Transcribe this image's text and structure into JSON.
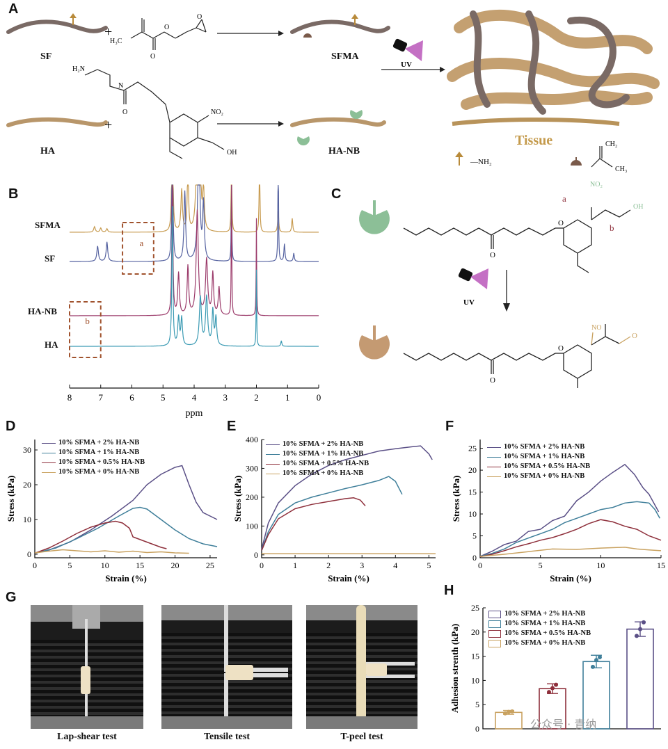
{
  "panels": {
    "A": "A",
    "B": "B",
    "C": "C",
    "D": "D",
    "E": "E",
    "F": "F",
    "G": "G",
    "H": "H"
  },
  "panelA": {
    "sf": "SF",
    "ha": "HA",
    "sfma": "SFMA",
    "hanb": "HA-NB",
    "uv": "UV",
    "tissue": "Tissue",
    "nh2": "—NH₂",
    "plus": "+",
    "h3c": "H₃C",
    "no2": "NO₂",
    "oh": "OH",
    "h2n": "H₂N",
    "ch2": "CH₂",
    "ch3": "CH₃"
  },
  "panelB": {
    "traces": [
      "SFMA",
      "SF",
      "HA-NB",
      "HA"
    ],
    "xlabel": "ppm",
    "xticks": [
      "8",
      "7",
      "6",
      "5",
      "4",
      "3",
      "2",
      "1",
      "0"
    ],
    "box_a": "a",
    "box_b": "b"
  },
  "panelC": {
    "uv": "UV",
    "a": "a",
    "b": "b",
    "no2": "NO₂",
    "oh": "OH",
    "no": "NO"
  },
  "colors": {
    "c2": "#5a4f86",
    "c1": "#3f7f9a",
    "c05": "#8e2f3b",
    "c0": "#c9a260",
    "sfma": "#c79a4e",
    "sf": "#5562a0",
    "hanb": "#9b3a6a",
    "ha": "#3a9ab3",
    "box": "#a0522d",
    "tissue": "#b8935a"
  },
  "legend": [
    "10% SFMA + 2% HA-NB",
    "10% SFMA + 1% HA-NB",
    "10% SFMA + 0.5% HA-NB",
    "10% SFMA + 0% HA-NB"
  ],
  "chart_data": [
    {
      "panel": "D",
      "type": "line",
      "xlabel": "Strain (%)",
      "ylabel": "Stress (kPa)",
      "xlim": [
        0,
        26
      ],
      "ylim": [
        -1,
        33
      ],
      "xticks": [
        0,
        5,
        10,
        15,
        20,
        25
      ],
      "yticks": [
        0,
        10,
        20,
        30
      ],
      "series": [
        {
          "name": "10% SFMA + 2% HA-NB",
          "points": [
            [
              0,
              0.3
            ],
            [
              2,
              1.2
            ],
            [
              5,
              3.5
            ],
            [
              8,
              7
            ],
            [
              11,
              11
            ],
            [
              14,
              15.5
            ],
            [
              16,
              20
            ],
            [
              18,
              23
            ],
            [
              20,
              25
            ],
            [
              21,
              25.5
            ],
            [
              22,
              20
            ],
            [
              23,
              15
            ],
            [
              24,
              12
            ],
            [
              26,
              10
            ]
          ]
        },
        {
          "name": "10% SFMA + 1% HA-NB",
          "points": [
            [
              0,
              0.3
            ],
            [
              3,
              1.8
            ],
            [
              6,
              4.5
            ],
            [
              9,
              7.5
            ],
            [
              12,
              11
            ],
            [
              14,
              13.2
            ],
            [
              15,
              13.5
            ],
            [
              16,
              13
            ],
            [
              18,
              10
            ],
            [
              20,
              7
            ],
            [
              22,
              4.5
            ],
            [
              24,
              3
            ],
            [
              26,
              2.2
            ]
          ]
        },
        {
          "name": "10% SFMA + 0.5% HA-NB",
          "points": [
            [
              0,
              0.3
            ],
            [
              2,
              1.8
            ],
            [
              4,
              3.8
            ],
            [
              6,
              6
            ],
            [
              8,
              7.8
            ],
            [
              10,
              9
            ],
            [
              11.5,
              9.5
            ],
            [
              12.5,
              9
            ],
            [
              13.5,
              7.5
            ],
            [
              14,
              5
            ],
            [
              16,
              3.5
            ],
            [
              18,
              2
            ],
            [
              18.8,
              1.6
            ]
          ]
        },
        {
          "name": "10% SFMA + 0% HA-NB",
          "points": [
            [
              0,
              0.4
            ],
            [
              2,
              0.9
            ],
            [
              4,
              1.3
            ],
            [
              6,
              1.0
            ],
            [
              8,
              0.7
            ],
            [
              10,
              1.0
            ],
            [
              12,
              0.6
            ],
            [
              14,
              0.9
            ],
            [
              16,
              0.5
            ],
            [
              18,
              0.7
            ],
            [
              20,
              0.4
            ],
            [
              22,
              0.3
            ]
          ]
        }
      ]
    },
    {
      "panel": "E",
      "type": "line",
      "xlabel": "Strain (%)",
      "ylabel": "Stress (kPa)",
      "xlim": [
        0,
        5.2
      ],
      "ylim": [
        -10,
        400
      ],
      "xticks": [
        0,
        1,
        2,
        3,
        4,
        5
      ],
      "yticks": [
        0,
        100,
        200,
        300,
        400
      ],
      "series": [
        {
          "name": "10% SFMA + 2% HA-NB",
          "points": [
            [
              0,
              20
            ],
            [
              0.2,
              110
            ],
            [
              0.5,
              180
            ],
            [
              1,
              240
            ],
            [
              1.5,
              280
            ],
            [
              2,
              310
            ],
            [
              2.5,
              330
            ],
            [
              3,
              345
            ],
            [
              3.5,
              360
            ],
            [
              4,
              368
            ],
            [
              4.5,
              375
            ],
            [
              4.75,
              378
            ],
            [
              5,
              350
            ],
            [
              5.1,
              330
            ]
          ]
        },
        {
          "name": "10% SFMA + 1% HA-NB",
          "points": [
            [
              0,
              15
            ],
            [
              0.2,
              80
            ],
            [
              0.5,
              140
            ],
            [
              1,
              180
            ],
            [
              1.5,
              200
            ],
            [
              2,
              215
            ],
            [
              2.5,
              230
            ],
            [
              3,
              243
            ],
            [
              3.5,
              258
            ],
            [
              3.8,
              272
            ],
            [
              4,
              255
            ],
            [
              4.2,
              210
            ]
          ]
        },
        {
          "name": "10% SFMA + 0.5% HA-NB",
          "points": [
            [
              0,
              15
            ],
            [
              0.2,
              70
            ],
            [
              0.5,
              125
            ],
            [
              1,
              160
            ],
            [
              1.5,
              175
            ],
            [
              2,
              185
            ],
            [
              2.5,
              195
            ],
            [
              2.75,
              198
            ],
            [
              2.95,
              190
            ],
            [
              3.1,
              170
            ]
          ]
        },
        {
          "name": "10% SFMA + 0% HA-NB",
          "points": [
            [
              0,
              4
            ],
            [
              1,
              4
            ],
            [
              2,
              4
            ],
            [
              3,
              4
            ],
            [
              4,
              4
            ],
            [
              5.2,
              4
            ]
          ]
        }
      ]
    },
    {
      "panel": "F",
      "type": "line",
      "xlabel": "Strain (%)",
      "ylabel": "Stress (kPa)",
      "xlim": [
        0,
        15
      ],
      "ylim": [
        0,
        27
      ],
      "xticks": [
        0,
        5,
        10,
        15
      ],
      "yticks": [
        0,
        5,
        10,
        15,
        20,
        25
      ],
      "series": [
        {
          "name": "10% SFMA + 2% HA-NB",
          "points": [
            [
              0,
              0.3
            ],
            [
              1,
              1.5
            ],
            [
              2,
              3
            ],
            [
              3,
              3.8
            ],
            [
              4,
              6
            ],
            [
              5,
              6.5
            ],
            [
              6,
              8.5
            ],
            [
              7,
              9.5
            ],
            [
              8,
              13
            ],
            [
              9,
              15
            ],
            [
              10,
              17.5
            ],
            [
              11,
              19.5
            ],
            [
              12,
              21.3
            ],
            [
              12.8,
              19
            ],
            [
              13.5,
              16
            ],
            [
              14,
              14.5
            ],
            [
              14.5,
              12
            ],
            [
              14.8,
              10.5
            ]
          ]
        },
        {
          "name": "10% SFMA + 1% HA-NB",
          "points": [
            [
              0,
              0.3
            ],
            [
              1,
              1
            ],
            [
              2,
              2
            ],
            [
              3,
              3.5
            ],
            [
              4,
              4.5
            ],
            [
              5,
              5.5
            ],
            [
              6,
              6.5
            ],
            [
              7,
              8
            ],
            [
              8,
              9
            ],
            [
              9,
              10
            ],
            [
              10,
              11
            ],
            [
              11,
              11.5
            ],
            [
              12,
              12.5
            ],
            [
              13,
              12.8
            ],
            [
              14,
              12.5
            ],
            [
              14.5,
              11
            ],
            [
              14.9,
              9
            ]
          ]
        },
        {
          "name": "10% SFMA + 0.5% HA-NB",
          "points": [
            [
              0,
              0.2
            ],
            [
              1,
              0.8
            ],
            [
              2,
              1.6
            ],
            [
              3,
              2.5
            ],
            [
              4,
              3.2
            ],
            [
              5,
              4
            ],
            [
              6,
              4.6
            ],
            [
              7,
              5.5
            ],
            [
              8,
              6.5
            ],
            [
              9,
              7.8
            ],
            [
              10,
              8.7
            ],
            [
              11,
              8.2
            ],
            [
              12,
              7.2
            ],
            [
              13,
              6.5
            ],
            [
              14,
              5
            ],
            [
              15,
              4
            ]
          ]
        },
        {
          "name": "10% SFMA + 0% HA-NB",
          "points": [
            [
              0,
              0.3
            ],
            [
              2,
              0.8
            ],
            [
              4,
              1.4
            ],
            [
              6,
              2.0
            ],
            [
              8,
              1.9
            ],
            [
              10,
              2.2
            ],
            [
              12,
              2.4
            ],
            [
              13,
              2.0
            ],
            [
              14,
              1.8
            ],
            [
              15,
              1.6
            ]
          ]
        }
      ]
    },
    {
      "panel": "H",
      "type": "bar",
      "ylabel": "Adhesion strenth  (kPa)",
      "ylim": [
        0,
        25
      ],
      "yticks": [
        0,
        5,
        10,
        15,
        20,
        25
      ],
      "categories": [
        "10% SFMA + 0% HA-NB",
        "10% SFMA + 0.5% HA-NB",
        "10% SFMA + 1% HA-NB",
        "10% SFMA + 2% HA-NB"
      ],
      "values": [
        3.4,
        8.3,
        13.9,
        20.6
      ],
      "errors": [
        0.4,
        1.0,
        1.3,
        1.5
      ],
      "points": [
        [
          3.2,
          3.5,
          3.6
        ],
        [
          7.6,
          8.4,
          9.1
        ],
        [
          12.8,
          14.2,
          14.8
        ],
        [
          19.2,
          20.6,
          22.0
        ]
      ]
    }
  ],
  "panelG": {
    "captions": [
      "Lap-shear test",
      "Tensile test",
      "T-peel test"
    ]
  },
  "watermark": "公众号 · 青纳"
}
